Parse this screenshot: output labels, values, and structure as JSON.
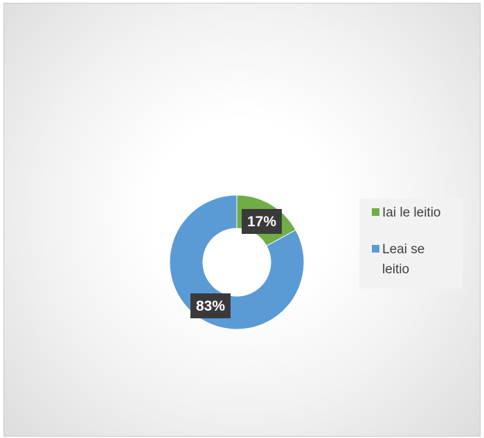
{
  "chart_data": {
    "type": "pie",
    "variant": "doughnut",
    "categories": [
      "Iai le leitio",
      "Leai se leitio"
    ],
    "values": [
      17,
      83
    ],
    "labels": [
      "17%",
      "83%"
    ],
    "colors": [
      "#70ad47",
      "#5b9bd5"
    ],
    "legend": {
      "placement": "right",
      "entries": [
        "Iai le leitio",
        "Leai se leitio"
      ]
    },
    "title": ""
  }
}
